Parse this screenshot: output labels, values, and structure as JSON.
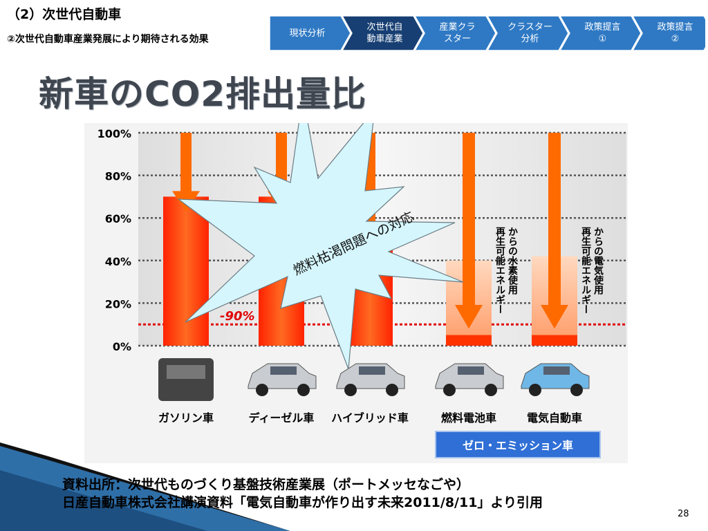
{
  "header": {
    "title": "（2）次世代自動車",
    "subtitle": "②次世代自動車産業発展により期待される効果"
  },
  "nav": {
    "steps": [
      {
        "label": "現状分析",
        "active": false
      },
      {
        "label": "次世代自\n動車産業",
        "active": true
      },
      {
        "label": "産業クラ\nスター",
        "active": false
      },
      {
        "label": "クラスター\n分析",
        "active": false
      },
      {
        "label": "政策提言\n①",
        "active": false
      },
      {
        "label": "政策提言\n②",
        "active": false
      }
    ],
    "colors": {
      "normal": "#2f79c4",
      "active": "#173f73"
    }
  },
  "slide": {
    "title": "新車のCO2排出量比",
    "source_line1": "資料出所：次世代ものづくり基盤技術産業展（ポートメッセなごや）",
    "source_line2": "日産自動車株式会社講演資料「電気自動車が作り出す未来2011/8/11」より引用",
    "page_number": "28"
  },
  "chart_data": {
    "type": "bar",
    "ylim": [
      0,
      100
    ],
    "yticks": [
      "0%",
      "20%",
      "40%",
      "60%",
      "80%",
      "100%"
    ],
    "categories": [
      "ガソリン車",
      "ディーゼル車",
      "ハイブリッド車",
      "燃料電池車",
      "電気自動車"
    ],
    "values": [
      70,
      70,
      55,
      40,
      42
    ],
    "renewable_values": [
      null,
      null,
      null,
      5,
      5
    ],
    "target_line": 10,
    "target_label": "-90%",
    "bar_annotations": [
      "",
      "",
      "",
      "再生可能エネルギー\nからの水素使用",
      "再生可能エネルギー\nからの電気使用"
    ],
    "group_label": "ゼロ・エミッション車",
    "burst_text": "燃料枯渇問題への対応",
    "colors": {
      "bar": "#ff3300",
      "light": "#ffb98c",
      "arrow": "#ff6a00",
      "target": "#e00000",
      "burst": "#d5f6fd",
      "group": "#2f6fd6"
    }
  }
}
